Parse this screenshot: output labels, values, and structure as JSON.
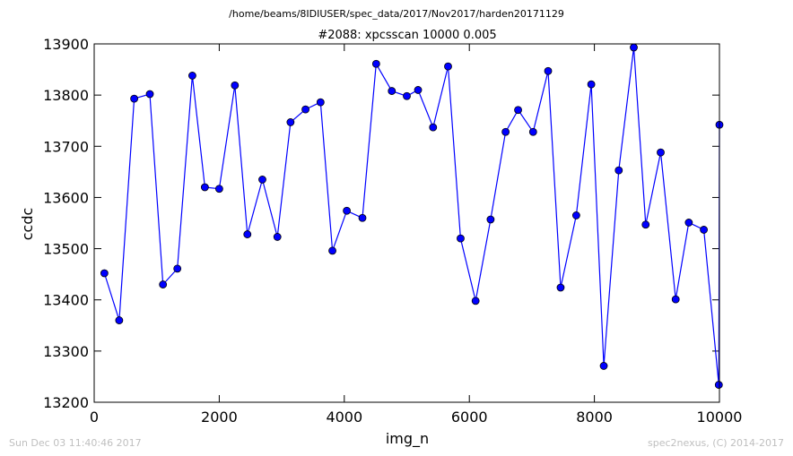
{
  "header": {
    "file_path": "/home/beams/8IDIUSER/spec_data/2017/Nov2017/harden20171129"
  },
  "footer": {
    "timestamp": "Sun Dec 03 11:40:46 2017",
    "credit": "spec2nexus, (C) 2014-2017"
  },
  "chart_data": {
    "type": "line",
    "title": "#2088: xpcsscan 10000 0.005",
    "xlabel": "img_n",
    "ylabel": "ccdc",
    "xlim": [
      0,
      10000
    ],
    "ylim": [
      13200,
      13900
    ],
    "xticks": [
      0,
      2000,
      4000,
      6000,
      8000,
      10000
    ],
    "yticks": [
      13200,
      13300,
      13400,
      13500,
      13600,
      13700,
      13800,
      13900
    ],
    "grid": false,
    "series": [
      {
        "color": "#0000ff",
        "marker": "circle",
        "x": [
          163,
          400,
          640,
          890,
          1100,
          1330,
          1570,
          1770,
          2000,
          2250,
          2450,
          2690,
          2930,
          3140,
          3380,
          3620,
          3810,
          4040,
          4290,
          4510,
          4760,
          5000,
          5180,
          5420,
          5660,
          5860,
          6100,
          6340,
          6580,
          6780,
          7020,
          7260,
          7460,
          7710,
          7950,
          8150,
          8390,
          8630,
          8820,
          9060,
          9300,
          9510,
          9750,
          9990,
          10000
        ],
        "y": [
          13452,
          13360,
          13793,
          13802,
          13430,
          13461,
          13838,
          13620,
          13617,
          13819,
          13528,
          13635,
          13523,
          13747,
          13772,
          13786,
          13496,
          13574,
          13560,
          13861,
          13808,
          13798,
          13810,
          13737,
          13856,
          13520,
          13398,
          13557,
          13728,
          13771,
          13728,
          13847,
          13424,
          13565,
          13821,
          13271,
          13653,
          13893,
          13547,
          13688,
          13401,
          13551,
          13537,
          13234,
          13742
        ]
      }
    ]
  }
}
